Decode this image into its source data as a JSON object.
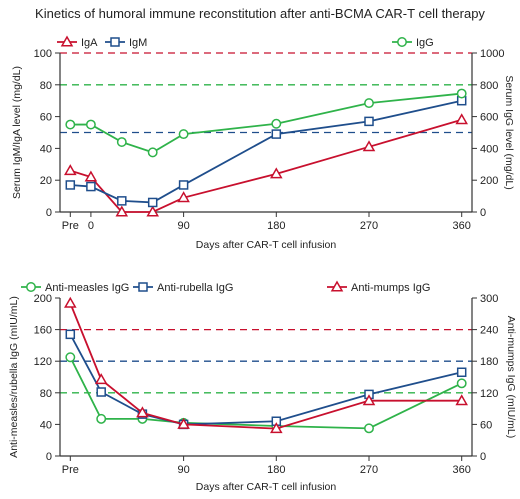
{
  "title": "Kinetics of humoral immune reconstitution after anti-BCMA CAR-T cell therapy",
  "colors": {
    "red": "#c8102e",
    "blue": "#1f4e8c",
    "green": "#2fb34a",
    "axis": "#333333"
  },
  "chart_data": [
    {
      "type": "line",
      "x_tick_labels": [
        "Pre",
        "0",
        "90",
        "180",
        "270",
        "360"
      ],
      "x_ticks": [
        -20,
        0,
        90,
        180,
        270,
        360
      ],
      "xlim": [
        -30,
        370
      ],
      "xlabel": "Days after CAR-T cell infusion",
      "ylabel": "Serum IgM/IgA level (mg/dL)",
      "ylabel_right": "Serum IgG level (mg/dL)",
      "ylim": [
        0,
        100
      ],
      "yticks": [
        "0",
        "20",
        "40",
        "60",
        "80",
        "100"
      ],
      "ylim_right": [
        0,
        1000
      ],
      "yticks_right": [
        "0",
        "200",
        "400",
        "600",
        "800",
        "1000"
      ],
      "legend": [
        "IgA",
        "IgM",
        "IgG"
      ],
      "reference_lines": [
        {
          "axis": "left",
          "value": 100,
          "color": "red"
        },
        {
          "axis": "left",
          "value": 80,
          "color": "green"
        },
        {
          "axis": "left",
          "value": 50,
          "color": "blue"
        }
      ],
      "series": [
        {
          "name": "IgA",
          "axis": "left",
          "color": "red",
          "marker": "triangle",
          "x": [
            -20,
            0,
            30,
            60,
            90,
            180,
            270,
            360
          ],
          "y": [
            26,
            22,
            0,
            0,
            9,
            24,
            41,
            58
          ]
        },
        {
          "name": "IgM",
          "axis": "left",
          "color": "blue",
          "marker": "square",
          "x": [
            -20,
            0,
            30,
            60,
            90,
            180,
            270,
            360
          ],
          "y": [
            17,
            16,
            7,
            6,
            17,
            49,
            57,
            70
          ]
        },
        {
          "name": "IgG",
          "axis": "right",
          "color": "green",
          "marker": "circle",
          "x": [
            -20,
            0,
            30,
            60,
            90,
            180,
            270,
            360
          ],
          "y": [
            550,
            550,
            440,
            375,
            490,
            555,
            685,
            745
          ]
        }
      ]
    },
    {
      "type": "line",
      "x_tick_labels": [
        "Pre",
        "90",
        "180",
        "270",
        "360"
      ],
      "x_ticks": [
        -20,
        90,
        180,
        270,
        360
      ],
      "xlim": [
        -30,
        370
      ],
      "xlabel": "Days after CAR-T cell infusion",
      "ylabel": "Anti-measles/rubella IgG (mIU/mL)",
      "ylabel_right": "Anti-mumps IgG (mIU/mL)",
      "ylim": [
        0,
        200
      ],
      "yticks": [
        "0",
        "40",
        "80",
        "120",
        "160",
        "200"
      ],
      "ylim_right": [
        0,
        300
      ],
      "yticks_right": [
        "0",
        "60",
        "120",
        "180",
        "240",
        "300"
      ],
      "legend": [
        "Anti-measles IgG",
        "Anti-rubella IgG",
        "Anti-mumps IgG"
      ],
      "reference_lines": [
        {
          "axis": "left",
          "value": 160,
          "color": "red"
        },
        {
          "axis": "left",
          "value": 120,
          "color": "blue"
        },
        {
          "axis": "left",
          "value": 80,
          "color": "green"
        }
      ],
      "series": [
        {
          "name": "Anti-measles IgG",
          "axis": "left",
          "color": "green",
          "marker": "circle",
          "x": [
            -20,
            10,
            50,
            90,
            180,
            270,
            360
          ],
          "y": [
            125,
            47,
            47,
            42,
            38,
            35,
            92
          ]
        },
        {
          "name": "Anti-rubella IgG",
          "axis": "left",
          "color": "blue",
          "marker": "square",
          "x": [
            -20,
            10,
            50,
            90,
            180,
            270,
            360
          ],
          "y": [
            154,
            81,
            53,
            40,
            44,
            78,
            106
          ]
        },
        {
          "name": "Anti-mumps IgG",
          "axis": "right",
          "color": "red",
          "marker": "triangle",
          "x": [
            -20,
            10,
            50,
            90,
            180,
            270,
            360
          ],
          "y": [
            290,
            145,
            82,
            60,
            52,
            105,
            105
          ]
        }
      ]
    }
  ]
}
